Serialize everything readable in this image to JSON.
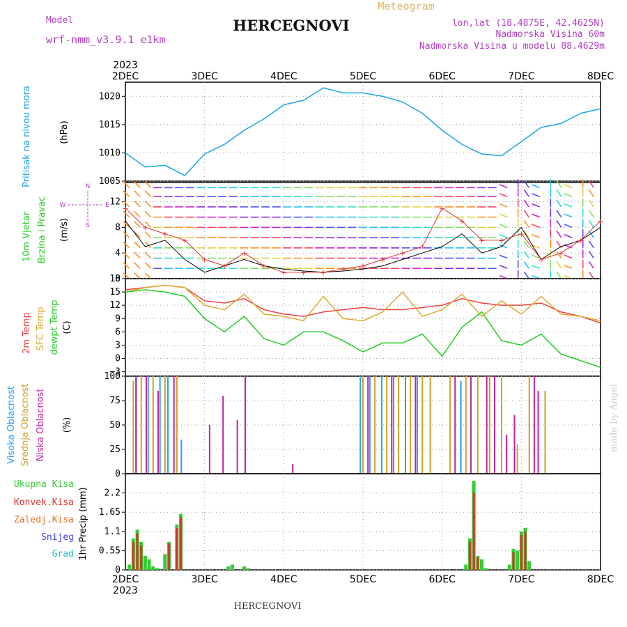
{
  "header": {
    "model_label": "Model",
    "model_name": "wrf-nmm_v3.9.1 e1km",
    "title": "HERCEGNOVI",
    "product": "Meteogram",
    "lonlat": "lon,lat (18.4875E, 42.4625N)",
    "elevation": "Nadmorska Visina 60m",
    "model_elevation": "Nadmorska Visina u modelu 88.4629m",
    "footer_title": "HERCEGNOVI",
    "credit": "made by Angel"
  },
  "colors": {
    "pressure": "#1aa3e8",
    "temp2m": "#f04040",
    "sfc": "#e0a830",
    "dewpt": "#22cc22",
    "cloud_high": "#20a0ff",
    "cloud_mid": "#d4a020",
    "cloud_low": "#c020a0",
    "precip_total": "#33cc33",
    "precip_conv": "#e03030",
    "precip_frozen": "#ee7020",
    "precip_snow": "#4040e0",
    "precip_graupel": "#20c0c0",
    "label_purple": "#b040c0"
  },
  "time_axis": {
    "year": "2023",
    "days": [
      "2DEC",
      "3DEC",
      "4DEC",
      "5DEC",
      "6DEC",
      "7DEC",
      "8DEC"
    ]
  },
  "chart_data": [
    {
      "type": "line",
      "panel": "pressure",
      "ylabel": [
        "Pritisak na nivou mora",
        "(hPa)"
      ],
      "ylim": [
        1005,
        1022.5
      ],
      "yticks": [
        "1005",
        "1010",
        "1015",
        "1020"
      ],
      "x_days": [
        0,
        0.25,
        0.5,
        0.75,
        1.0,
        1.25,
        1.5,
        1.75,
        2.0,
        2.25,
        2.5,
        2.75,
        3.0,
        3.25,
        3.5,
        3.75,
        4.0,
        4.25,
        4.5,
        4.75,
        5.0,
        5.25,
        5.5,
        5.75,
        6.0
      ],
      "series": [
        {
          "values": [
            1010.0,
            1007.5,
            1007.8,
            1006.0,
            1009.8,
            1011.5,
            1014.0,
            1016.0,
            1018.5,
            1019.3,
            1021.5,
            1020.6,
            1020.6,
            1020.0,
            1019.0,
            1017.0,
            1014.0,
            1011.5,
            1009.8,
            1009.5,
            1012.0,
            1014.5,
            1015.2,
            1017.0,
            1017.8
          ]
        }
      ]
    },
    {
      "type": "line",
      "panel": "wind",
      "ylabel": [
        "10m Vjetar",
        "Brzina i Pravac",
        "(m/s)"
      ],
      "direction_legend": [
        "N",
        "W",
        "E",
        "S"
      ],
      "ylim": [
        0,
        15
      ],
      "yticks": [
        "0",
        "4",
        "8",
        "12"
      ],
      "x_days": [
        0,
        0.25,
        0.5,
        0.75,
        1.0,
        1.25,
        1.5,
        1.75,
        2.0,
        2.25,
        2.5,
        2.75,
        3.0,
        3.25,
        3.5,
        3.75,
        4.0,
        4.25,
        4.5,
        4.75,
        5.0,
        5.25,
        5.5,
        5.75,
        6.0
      ],
      "series": [
        {
          "name": "speed",
          "values": [
            9,
            5,
            6,
            3,
            1,
            2,
            3,
            2,
            1.5,
            1.2,
            1,
            1.2,
            1.5,
            2,
            3,
            4,
            5,
            7,
            4,
            5,
            8,
            3,
            5,
            6,
            8
          ]
        },
        {
          "name": "gust",
          "values": [
            11,
            8,
            7,
            6,
            3,
            2,
            4,
            2,
            1,
            1,
            1,
            1.5,
            2,
            3,
            4,
            5,
            11,
            9,
            6,
            6,
            7,
            3,
            4,
            6,
            9
          ]
        }
      ]
    },
    {
      "type": "line",
      "panel": "temperature",
      "ylabel": [
        "2m Temp",
        "SFC Temp",
        "dewpt Temp",
        "(C)"
      ],
      "ylim": [
        -4,
        18
      ],
      "yticks": [
        "−3",
        "0",
        "3",
        "6",
        "9",
        "12",
        "15",
        "18"
      ],
      "x_days": [
        0,
        0.25,
        0.5,
        0.75,
        1.0,
        1.25,
        1.5,
        1.75,
        2.0,
        2.25,
        2.5,
        2.75,
        3.0,
        3.25,
        3.5,
        3.75,
        4.0,
        4.25,
        4.5,
        4.75,
        5.0,
        5.25,
        5.5,
        5.75,
        6.0
      ],
      "series": [
        {
          "name": "2m Temp",
          "values": [
            15.5,
            16.0,
            16.5,
            16.0,
            13.0,
            12.5,
            13.5,
            11.0,
            10.0,
            9.5,
            10.5,
            11.0,
            11.5,
            11.0,
            11.0,
            11.5,
            12.0,
            13.5,
            12.5,
            12.0,
            12.0,
            12.5,
            10.5,
            9.5,
            8.0
          ]
        },
        {
          "name": "SFC Temp",
          "values": [
            15.0,
            16.0,
            16.5,
            16.0,
            12.0,
            11.0,
            14.5,
            10.0,
            9.5,
            8.5,
            14.0,
            9.0,
            8.5,
            10.5,
            15.0,
            9.5,
            11.0,
            14.5,
            9.5,
            13.0,
            10.0,
            14.0,
            10.0,
            9.5,
            8.5
          ]
        },
        {
          "name": "dewpt Temp",
          "values": [
            15.0,
            15.5,
            15.0,
            14.0,
            9.0,
            6.0,
            9.5,
            4.5,
            3.0,
            6.0,
            6.0,
            4.0,
            1.5,
            3.5,
            3.5,
            5.5,
            0.5,
            7.0,
            10.5,
            4.0,
            3.0,
            5.5,
            1.0,
            -0.5,
            -2.0
          ]
        }
      ]
    },
    {
      "type": "bar",
      "panel": "cloud",
      "ylabel": [
        "Visoka Oblacnost",
        "Srednja Oblacnost",
        "Niska Oblacnost",
        "(%)"
      ],
      "ylim": [
        0,
        100
      ],
      "yticks": [
        "0",
        "25",
        "50",
        "75",
        "100"
      ],
      "series": [
        {
          "name": "Visoka Oblacnost",
          "x_days": [
            0.15,
            0.3,
            0.45,
            0.55,
            0.72,
            2.98,
            3.1,
            3.25,
            3.4,
            3.55,
            3.7,
            4.25
          ],
          "values": [
            100,
            100,
            100,
            100,
            35,
            100,
            100,
            100,
            100,
            100,
            100,
            95
          ]
        },
        {
          "name": "Srednja Oblacnost",
          "x_days": [
            0.1,
            0.2,
            0.35,
            0.5,
            0.65,
            3.0,
            3.15,
            3.3,
            3.45,
            3.6,
            3.75,
            3.85,
            4.1,
            4.3,
            4.45,
            4.6,
            4.75,
            4.95,
            5.1,
            5.3
          ],
          "values": [
            95,
            100,
            100,
            100,
            100,
            100,
            100,
            100,
            100,
            100,
            100,
            100,
            100,
            100,
            100,
            100,
            100,
            30,
            100,
            85
          ]
        },
        {
          "name": "Niska Oblacnost",
          "x_days": [
            0.12,
            0.25,
            0.4,
            0.6,
            1.05,
            1.22,
            1.4,
            1.5,
            2.1,
            3.05,
            3.35,
            3.65,
            4.15,
            4.35,
            4.55,
            4.65,
            4.8,
            4.9,
            5.15,
            5.2
          ],
          "values": [
            100,
            100,
            85,
            100,
            50,
            80,
            55,
            100,
            10,
            100,
            100,
            100,
            100,
            100,
            100,
            100,
            40,
            60,
            100,
            85
          ]
        }
      ]
    },
    {
      "type": "bar",
      "panel": "precip",
      "ylabel": [
        "1hr Precip (mm)"
      ],
      "legend": [
        "Ukupna Kisa",
        "Konvek.Kisa",
        "Zaledj.Kisa",
        "Snijeg",
        "Grad"
      ],
      "ylim": [
        0,
        2.75
      ],
      "yticks": [
        "0",
        "0.55",
        "1.1",
        "1.65",
        "2.2"
      ],
      "series": [
        {
          "name": "Ukupna Kisa",
          "x_days": [
            0.05,
            0.1,
            0.15,
            0.2,
            0.25,
            0.3,
            0.35,
            0.4,
            0.5,
            0.55,
            0.65,
            0.7,
            1.3,
            1.35,
            1.5,
            1.55,
            4.3,
            4.35,
            4.4,
            4.45,
            4.5,
            4.55,
            4.85,
            4.9,
            4.95,
            5.0,
            5.05,
            5.1
          ],
          "values": [
            0.15,
            0.9,
            1.15,
            0.8,
            0.4,
            0.3,
            0.1,
            0.05,
            0.45,
            0.8,
            1.3,
            1.6,
            0.1,
            0.15,
            0.1,
            0.05,
            0.15,
            0.9,
            2.55,
            0.4,
            0.3,
            0.05,
            0.15,
            0.6,
            0.55,
            1.1,
            1.2,
            0.25
          ]
        },
        {
          "name": "Konvek.Kisa",
          "x_days": [
            0.1,
            0.15,
            0.2,
            0.55,
            0.65,
            0.7,
            4.35,
            4.4,
            4.45,
            4.9,
            5.0,
            5.05
          ],
          "values": [
            0.8,
            1.05,
            0.7,
            0.75,
            1.2,
            1.5,
            0.8,
            2.2,
            0.35,
            0.5,
            1.0,
            1.1
          ]
        }
      ]
    }
  ]
}
